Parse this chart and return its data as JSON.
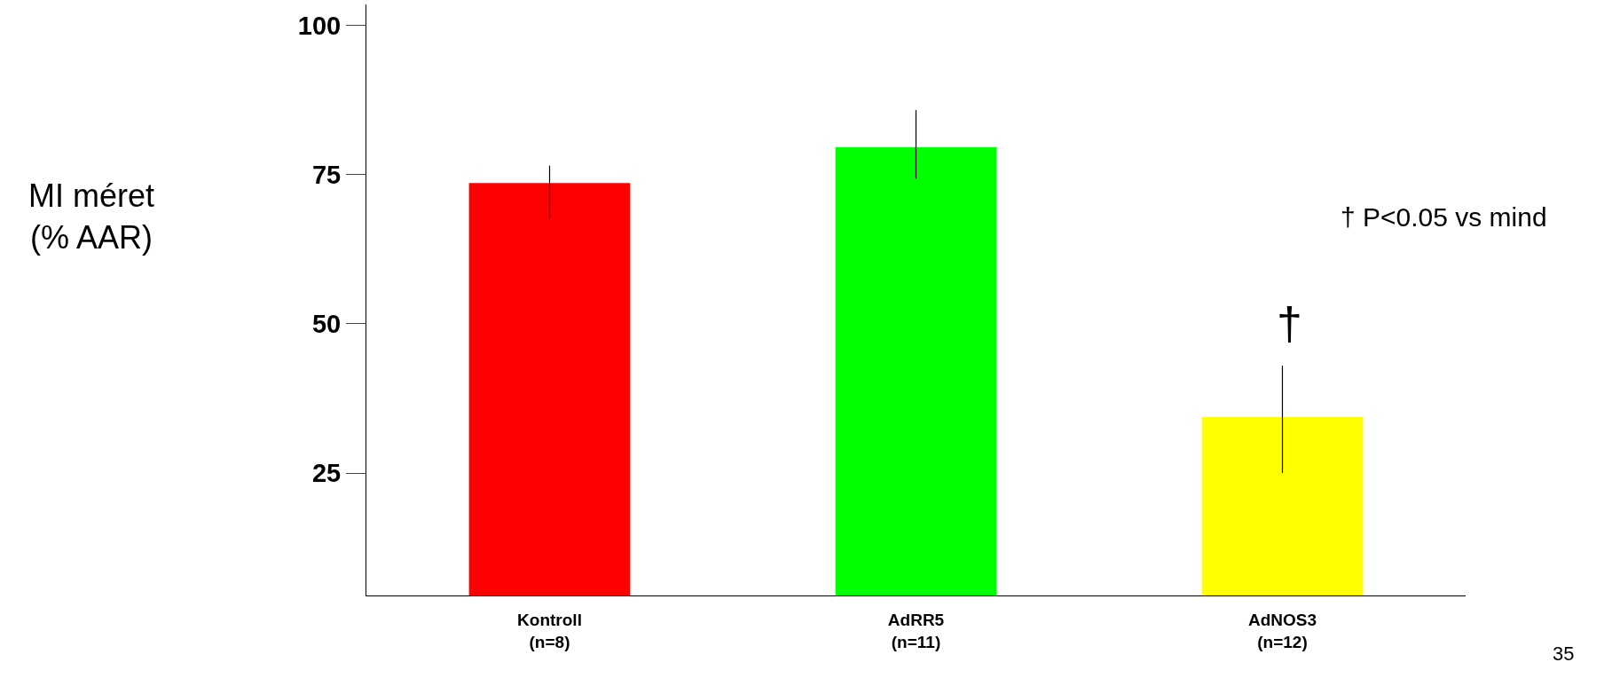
{
  "chart_data": {
    "type": "bar",
    "categories": [
      "Kontroll\n(n=8)",
      "AdRR5\n(n=11)",
      "AdNOS3\n(n=12)"
    ],
    "values": [
      73.6,
      79.6,
      34.4
    ],
    "colors": [
      "#ff0000",
      "#00ff00",
      "#ffff00"
    ],
    "errors": [
      [
        67.6,
        76.5
      ],
      [
        74.3,
        85.8
      ],
      [
        25.0,
        43.0
      ]
    ],
    "ylim": [
      4.5,
      103.5
    ],
    "yticks": [
      25,
      50,
      75,
      100
    ],
    "annotations": [
      "MI méret\n(% AAR)",
      "† P<0.05 vs mind",
      "†",
      "35"
    ]
  }
}
